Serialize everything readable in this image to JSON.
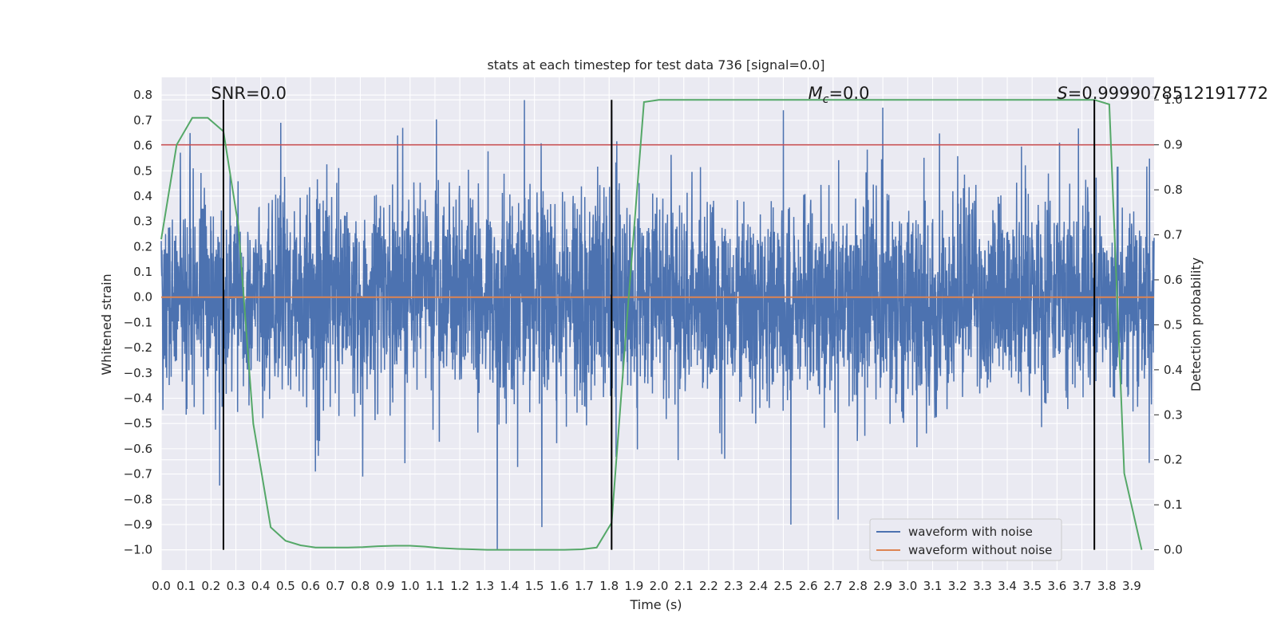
{
  "chart_data": {
    "type": "line",
    "title": "stats at each timestep for test data 736 [signal=0.0]",
    "xlabel": "Time (s)",
    "ylabel": "Whitened strain",
    "ylabel_right": "Detection probability",
    "xlim": [
      0.0,
      3.99
    ],
    "ylim": [
      -1.08,
      0.87
    ],
    "ylim_right": [
      -0.045,
      1.05
    ],
    "x_ticks": [
      0.0,
      0.1,
      0.2,
      0.3,
      0.4,
      0.5,
      0.6,
      0.7,
      0.8,
      0.9,
      1.0,
      1.1,
      1.2,
      1.3,
      1.4,
      1.5,
      1.6,
      1.7,
      1.8,
      1.9,
      2.0,
      2.1,
      2.2,
      2.3,
      2.4,
      2.5,
      2.6,
      2.7,
      2.8,
      2.9,
      3.0,
      3.1,
      3.2,
      3.3,
      3.4,
      3.5,
      3.6,
      3.7,
      3.8,
      3.9
    ],
    "x_tick_labels": [
      "0.0",
      "0.1",
      "0.2",
      "0.3",
      "0.4",
      "0.5",
      "0.6",
      "0.7",
      "0.8",
      "0.9",
      "1.0",
      "1.1",
      "1.2",
      "1.3",
      "1.4",
      "1.5",
      "1.6",
      "1.7",
      "1.8",
      "1.9",
      "2.0",
      "2.1",
      "2.2",
      "2.3",
      "2.4",
      "2.5",
      "2.6",
      "2.7",
      "2.8",
      "2.9",
      "3.0",
      "3.1",
      "3.2",
      "3.3",
      "3.4",
      "3.5",
      "3.6",
      "3.7",
      "3.8",
      "3.9"
    ],
    "y_ticks": [
      0.8,
      0.7,
      0.6,
      0.5,
      0.4,
      0.3,
      0.2,
      0.1,
      0.0,
      -0.1,
      -0.2,
      -0.3,
      -0.4,
      -0.5,
      -0.6,
      -0.7,
      -0.8,
      -0.9,
      -1.0
    ],
    "y_tick_labels": [
      "0.8",
      "0.7",
      "0.6",
      "0.5",
      "0.4",
      "0.3",
      "0.2",
      "0.1",
      "0.0",
      "−0.1",
      "−0.2",
      "−0.3",
      "−0.4",
      "−0.5",
      "−0.6",
      "−0.7",
      "−0.8",
      "−0.9",
      "−1.0"
    ],
    "y_right_ticks": [
      1.0,
      0.9,
      0.8,
      0.7,
      0.6,
      0.5,
      0.4,
      0.3,
      0.2,
      0.1,
      0.0
    ],
    "y_right_tick_labels": [
      "1.0",
      "0.9",
      "0.8",
      "0.7",
      "0.6",
      "0.5",
      "0.4",
      "0.3",
      "0.2",
      "0.1",
      "0.0"
    ],
    "grid": true,
    "background": "#eaeaf2",
    "annotations": [
      {
        "text": "SNR=0.0",
        "x": 0.2
      },
      {
        "text_main": "M",
        "text_sub": "c",
        "text_rest": "=0.0",
        "x": 2.6
      },
      {
        "text_main": "S",
        "text_rest": "=0.9999078512191772",
        "x": 3.6
      }
    ],
    "threshold_line": {
      "y_right": 0.9,
      "color": "#c44e52"
    },
    "vertical_lines": [
      0.25,
      1.81,
      3.75
    ],
    "series": [
      {
        "name": "waveform with noise",
        "color": "#4c72b0",
        "kind": "noise",
        "n_points": 4096,
        "amplitude_envelope": [
          0.3,
          0.5
        ],
        "peaks": [
          {
            "x": 1.35,
            "y": -1.0
          },
          {
            "x": 1.46,
            "y": 0.78
          },
          {
            "x": 1.81,
            "y": 0.74
          },
          {
            "x": 3.75,
            "y": 0.72
          },
          {
            "x": 1.53,
            "y": -0.91
          },
          {
            "x": 2.53,
            "y": -0.9
          },
          {
            "x": 2.72,
            "y": -0.88
          },
          {
            "x": 2.9,
            "y": 0.75
          },
          {
            "x": 2.5,
            "y": 0.74
          },
          {
            "x": 0.81,
            "y": -0.71
          },
          {
            "x": 0.97,
            "y": 0.67
          },
          {
            "x": 0.48,
            "y": 0.69
          },
          {
            "x": 0.95,
            "y": 0.64
          },
          {
            "x": 0.62,
            "y": -0.69
          }
        ]
      },
      {
        "name": "waveform without noise",
        "color": "#dd8452",
        "kind": "constant",
        "y": 0.0
      },
      {
        "name": "Detection probability",
        "color": "#55a868",
        "axis": "right",
        "x": [
          0.0,
          0.062,
          0.125,
          0.187,
          0.25,
          0.31,
          0.37,
          0.44,
          0.5,
          0.56,
          0.62,
          0.69,
          0.75,
          0.81,
          0.87,
          0.94,
          1.0,
          1.06,
          1.12,
          1.19,
          1.25,
          1.31,
          1.37,
          1.44,
          1.5,
          1.56,
          1.62,
          1.69,
          1.75,
          1.81,
          1.87,
          1.94,
          2.0,
          2.5,
          3.0,
          3.5,
          3.69,
          3.75,
          3.81,
          3.87,
          3.94
        ],
        "y": [
          0.69,
          0.9,
          0.96,
          0.96,
          0.93,
          0.72,
          0.28,
          0.05,
          0.02,
          0.01,
          0.005,
          0.005,
          0.005,
          0.006,
          0.008,
          0.009,
          0.009,
          0.007,
          0.004,
          0.002,
          0.001,
          0.0,
          0.0,
          0.0,
          0.0,
          0.0,
          0.0,
          0.001,
          0.005,
          0.06,
          0.5,
          0.995,
          1.0,
          1.0,
          1.0,
          1.0,
          1.0,
          1.0,
          0.99,
          0.17,
          0.0
        ]
      }
    ],
    "legend": {
      "placement": "lower-right",
      "entries": [
        {
          "label": "waveform with noise",
          "color": "#4c72b0"
        },
        {
          "label": "waveform without noise",
          "color": "#dd8452"
        }
      ]
    }
  }
}
